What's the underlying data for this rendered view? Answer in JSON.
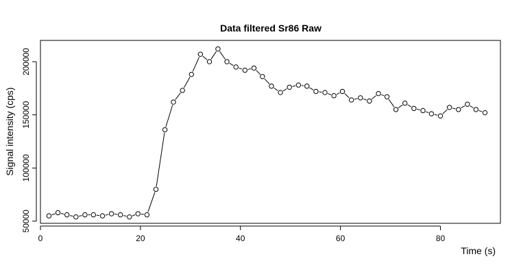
{
  "chart_data": {
    "type": "line",
    "title": "Data filtered Sr86 Raw",
    "xlabel": "Time (s)",
    "ylabel": "Signal intensity (cps)",
    "xlim": [
      0,
      92
    ],
    "ylim": [
      48000,
      220000
    ],
    "xticks": [
      0,
      20,
      40,
      60,
      80
    ],
    "yticks": [
      50000,
      100000,
      150000,
      200000
    ],
    "grid": false,
    "marker": "open-circle",
    "series": [
      {
        "x": [
          1.7,
          3.5,
          5.3,
          7.1,
          8.9,
          10.6,
          12.4,
          14.2,
          16.0,
          17.8,
          19.5,
          21.3,
          23.1,
          24.9,
          26.6,
          28.4,
          30.2,
          32.0,
          33.8,
          35.5,
          37.3,
          39.1,
          40.9,
          42.7,
          44.4,
          46.2,
          48.0,
          49.8,
          51.6,
          53.3,
          55.1,
          56.9,
          58.7,
          60.4,
          62.2,
          64.0,
          65.8,
          67.6,
          69.3,
          71.1,
          72.9,
          74.7,
          76.5,
          78.2,
          80.0,
          81.8,
          83.6,
          85.4,
          87.1,
          88.9
        ],
        "y": [
          55000,
          58000,
          56000,
          54000,
          56000,
          56000,
          55000,
          57000,
          56000,
          54000,
          57000,
          56000,
          80000,
          136000,
          162000,
          173000,
          188000,
          207000,
          200000,
          212000,
          200000,
          195000,
          192000,
          194000,
          186000,
          177000,
          171000,
          176000,
          178000,
          177000,
          172000,
          171000,
          168000,
          172000,
          164000,
          166000,
          163000,
          170000,
          167000,
          155000,
          161000,
          156000,
          154000,
          151000,
          149000,
          157000,
          155000,
          160000,
          155000,
          152000
        ]
      }
    ]
  }
}
